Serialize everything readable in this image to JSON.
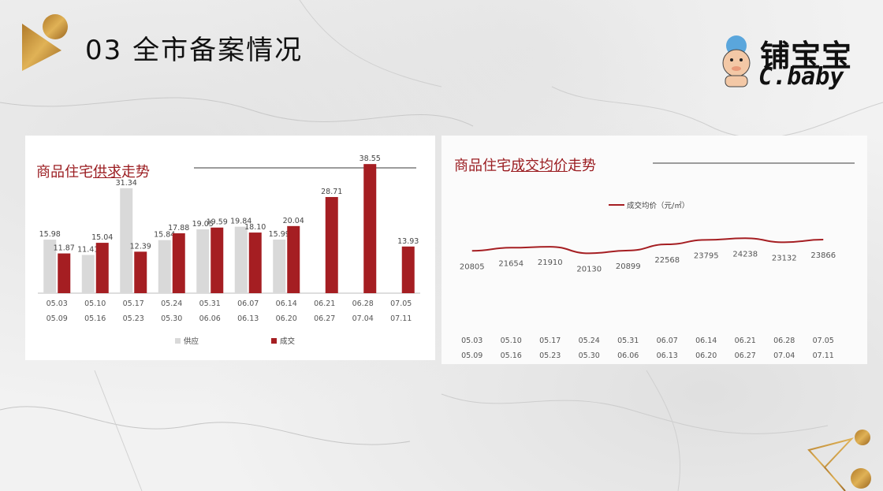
{
  "header": {
    "title": "03 全市备案情况"
  },
  "brand": {
    "name_cn": "铺宝宝",
    "name_en": "C.baby"
  },
  "colors": {
    "accent": "#a51e22",
    "supply": "#d9d9d9",
    "line": "#a51e22"
  },
  "left_panel": {
    "title_pre": "商品住宅",
    "title_mid": "供求",
    "title_post": "走势"
  },
  "right_panel": {
    "title_pre": "商品住宅",
    "title_mid": "成交均价",
    "title_post": "走势"
  },
  "chart_data": [
    {
      "type": "bar",
      "title": "商品住宅供求走势",
      "categories": [
        [
          "05.03",
          "05.09"
        ],
        [
          "05.10",
          "05.16"
        ],
        [
          "05.17",
          "05.23"
        ],
        [
          "05.24",
          "05.30"
        ],
        [
          "05.31",
          "06.06"
        ],
        [
          "06.07",
          "06.13"
        ],
        [
          "06.14",
          "06.20"
        ],
        [
          "06.21",
          "06.27"
        ],
        [
          "06.28",
          "07.04"
        ],
        [
          "07.05",
          "07.11"
        ]
      ],
      "series": [
        {
          "name": "供应",
          "color": "#d9d9d9",
          "values": [
            15.98,
            11.41,
            31.34,
            15.84,
            19.05,
            19.84,
            15.99,
            null,
            null,
            null
          ],
          "labels": [
            "15.98",
            "11.41",
            "31.34",
            "15.84",
            "19.05",
            "19.84",
            "15.99",
            "",
            "",
            ""
          ]
        },
        {
          "name": "成交",
          "color": "#a51e22",
          "values": [
            11.87,
            15.04,
            12.39,
            17.88,
            19.59,
            18.1,
            20.04,
            28.71,
            38.55,
            13.93
          ],
          "labels": [
            "11.87",
            "15.04",
            "12.39",
            "17.88",
            "19.59",
            "18.10",
            "20.04",
            "28.71",
            "38.55",
            "13.93"
          ]
        }
      ],
      "ylim": [
        0,
        40
      ],
      "legend": "bottom"
    },
    {
      "type": "line",
      "title": "商品住宅成交均价走势",
      "categories": [
        [
          "05.03",
          "05.09"
        ],
        [
          "05.10",
          "05.16"
        ],
        [
          "05.17",
          "05.23"
        ],
        [
          "05.24",
          "05.30"
        ],
        [
          "05.31",
          "06.06"
        ],
        [
          "06.07",
          "06.13"
        ],
        [
          "06.14",
          "06.20"
        ],
        [
          "06.21",
          "06.27"
        ],
        [
          "06.28",
          "07.04"
        ],
        [
          "07.05",
          "07.11"
        ]
      ],
      "series": [
        {
          "name": "成交均价（元/㎡）",
          "color": "#a51e22",
          "values": [
            20805,
            21654,
            21910,
            20130,
            20899,
            22568,
            23795,
            24238,
            23132,
            23866
          ]
        }
      ],
      "ylim": [
        19000,
        26000
      ],
      "legend": "top"
    }
  ]
}
